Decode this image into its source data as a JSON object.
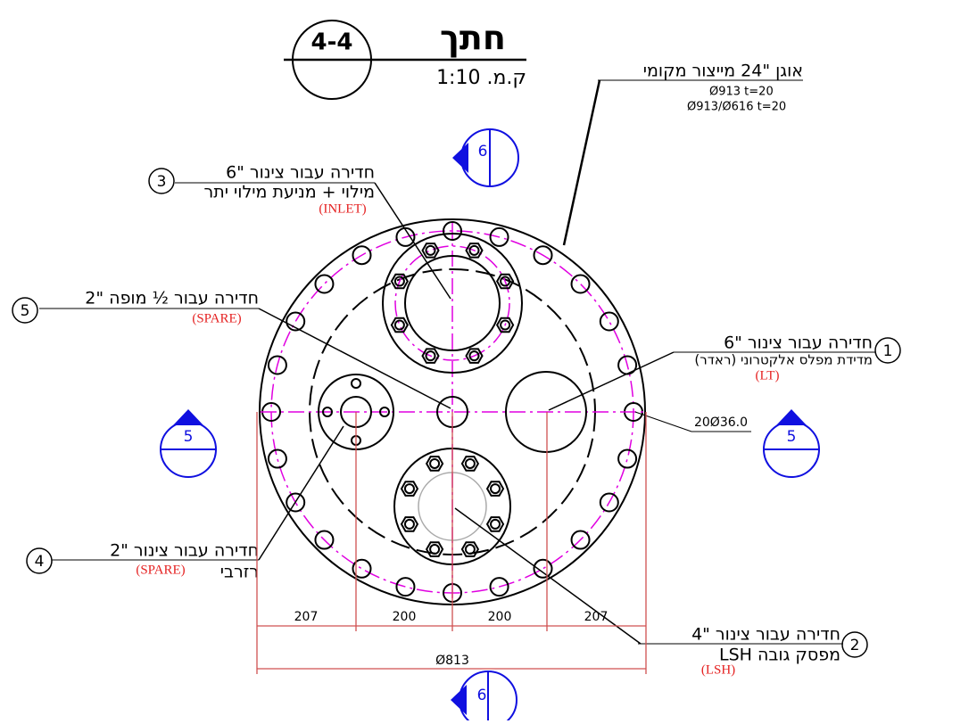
{
  "header": {
    "section": "4-4",
    "title": "חתך",
    "scale": "ק.מ. 1:10"
  },
  "flange": {
    "label": "אוגן \"24 מייצור מקומי",
    "spec1": "Ø913 t=20",
    "spec2": "Ø913/Ø616 t=20"
  },
  "callouts": [
    {
      "number": "1",
      "line1": "חדירה עבור צינור \"6",
      "line2": "מדידת מפלס אלקטרוני (ראדר)",
      "tag": "(LT)"
    },
    {
      "number": "2",
      "line1": "חדירה עבור צינור \"4",
      "line2": "מפסק גובה LSH",
      "tag": "(LSH)"
    },
    {
      "number": "3",
      "line1": "חדירה עבור צינור \"6",
      "line2": "מילוי + מניעת מילוי יתר",
      "tag": "(INLET)"
    },
    {
      "number": "4",
      "line1": "חדירה עבור צינור \"2",
      "line2": "רזרבי",
      "tag": "(SPARE)"
    },
    {
      "number": "5",
      "line1": "חדירה עבור ½ מופה \"2",
      "tag": "(SPARE)"
    }
  ],
  "section_marks": {
    "top": "6",
    "bottom": "6",
    "left": "5",
    "right": "5"
  },
  "dimensions": {
    "d1": "207",
    "d2": "200",
    "d3": "200",
    "d4": "207",
    "overall": "Ø813",
    "holes": "20Ø36.0"
  }
}
